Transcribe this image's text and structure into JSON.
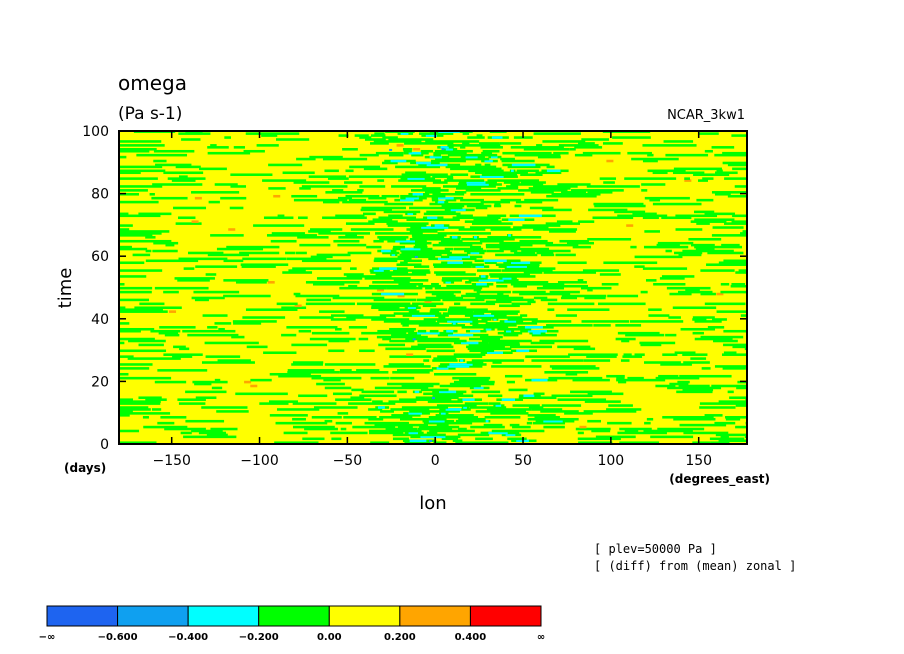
{
  "chart_data": {
    "type": "heatmap",
    "title": "omega",
    "units": "(Pa s-1)",
    "dataset_label": "NCAR_3kw1",
    "xlabel": "lon",
    "xunits": "(degrees_east)",
    "ylabel": "time",
    "yunits": "(days)",
    "xlim": [
      -180,
      177.5
    ],
    "ylim": [
      0,
      100
    ],
    "x_ticks": [
      -150,
      -100,
      -50,
      0,
      50,
      100,
      150
    ],
    "y_ticks": [
      0,
      20,
      40,
      60,
      80,
      100
    ],
    "x_tick_labels": [
      "−150",
      "−100",
      "−50",
      "0",
      "50",
      "100",
      "150"
    ],
    "y_tick_labels": [
      "0",
      "20",
      "40",
      "60",
      "80",
      "100"
    ],
    "annotations": [
      "[ plev=50000 Pa ]",
      "[ (diff) from (mean) zonal ]"
    ],
    "colorbar": {
      "labels": [
        "−∞",
        "−0.600",
        "−0.400",
        "−0.200",
        "0.00",
        "0.200",
        "0.400",
        "∞"
      ],
      "colors": [
        "#1e64f0",
        "#0fa0f0",
        "#00ffff",
        "#00ff00",
        "#ffff00",
        "#ffa500",
        "#ff0000"
      ]
    },
    "field_description": {
      "background_color": "#ffff00",
      "dominant_levels": [
        "0.00 to 0.200",
        "-0.200 to 0.00"
      ],
      "strongest_negative_region_lon": [
        -40,
        60
      ]
    }
  }
}
